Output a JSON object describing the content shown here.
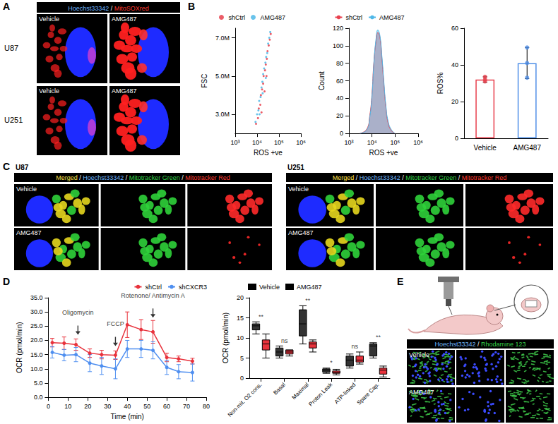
{
  "panel_labels": [
    "A",
    "B",
    "C",
    "D",
    "E"
  ],
  "image_panels": {
    "A": {
      "header": "Hoechst33342 / MitoSOXred",
      "rows": [
        "U87",
        "U251"
      ],
      "columns": [
        "Vehicle",
        "AMG487"
      ]
    },
    "C": {
      "groups": [
        "U87",
        "U251"
      ],
      "header": "Merged / Hoechst33342 / Mitotracker Green / Mitotracker Red",
      "rows": [
        "Vehicle",
        "AMG487"
      ]
    },
    "E": {
      "header": "Hoechst33342 / Rhodamine 123",
      "rows": [
        "Vehicle",
        "AMG487"
      ]
    }
  },
  "chart_data": [
    {
      "type": "scatter",
      "xlabel": "ROS +ve",
      "ylabel": "FSC",
      "log": "x",
      "xlim": [
        1000,
        1000000
      ],
      "xticks": [
        {
          "value": 1000,
          "label": "10³"
        },
        {
          "value": 10000,
          "label": "10⁴"
        },
        {
          "value": 100000,
          "label": "10⁵"
        },
        {
          "value": 1000000,
          "label": "10⁶"
        }
      ],
      "ylim": [
        2000000,
        7500000
      ],
      "yticks": [
        {
          "value": 3000000,
          "label": "3.0M"
        },
        {
          "value": 5000000,
          "label": "5.0M"
        },
        {
          "value": 7000000,
          "label": "7.0M"
        }
      ],
      "grid": false,
      "legend": "top",
      "marker": "circle",
      "series": [
        {
          "name": "shCtrl",
          "color": "#e8414e",
          "x": [
            9000,
            11000,
            12000,
            14000,
            15000,
            17000,
            19000,
            20000,
            23000,
            25000,
            28000,
            30000,
            34000,
            38000,
            42000,
            16000,
            22000,
            27000
          ],
          "values": [
            2500000,
            2800000,
            3300000,
            3500000,
            4000000,
            4300000,
            4600000,
            5000000,
            5300000,
            5600000,
            5900000,
            6300000,
            6600000,
            6900000,
            7200000,
            3100000,
            4200000,
            5000000
          ]
        },
        {
          "name": "AMG487",
          "color": "#4fb8e8",
          "x": [
            8500,
            10000,
            11500,
            12500,
            14500,
            16000,
            17500,
            19000,
            21000,
            24000,
            26000,
            29000,
            32000,
            36000,
            40000,
            13000,
            18000,
            25000
          ],
          "values": [
            2600000,
            3000000,
            3200000,
            3700000,
            3900000,
            4400000,
            4700000,
            5100000,
            5400000,
            5700000,
            6000000,
            6200000,
            6700000,
            7000000,
            7300000,
            3000000,
            4100000,
            4900000
          ]
        }
      ]
    },
    {
      "type": "area",
      "xlabel": "ROS +ve",
      "ylabel": "Count",
      "log": "x",
      "xlim": [
        1000,
        1000000
      ],
      "xticks": [
        {
          "value": 1000,
          "label": "10³"
        },
        {
          "value": 10000,
          "label": "10⁴"
        },
        {
          "value": 100000,
          "label": "10⁵"
        },
        {
          "value": 1000000,
          "label": "10⁶"
        }
      ],
      "ylim": [
        0,
        120
      ],
      "yticks": [
        0,
        20,
        40,
        60,
        80,
        100,
        120
      ],
      "grid": false,
      "legend": "top",
      "series": [
        {
          "name": "shCtrl",
          "color": "#e8414e",
          "x": [
            3000,
            6000,
            8000,
            10000,
            12000,
            15000,
            18000,
            22000,
            27000,
            33000,
            40000,
            50000,
            70000,
            100000
          ],
          "values": [
            0,
            5,
            20,
            45,
            80,
            105,
            115,
            110,
            85,
            55,
            30,
            12,
            3,
            0
          ]
        },
        {
          "name": "AMG487",
          "color": "#4fb8e8",
          "x": [
            3000,
            6000,
            8000,
            10000,
            12000,
            15000,
            18000,
            22000,
            27000,
            33000,
            40000,
            50000,
            70000,
            100000
          ],
          "values": [
            0,
            4,
            18,
            42,
            78,
            108,
            118,
            112,
            88,
            58,
            32,
            14,
            4,
            0
          ]
        }
      ]
    },
    {
      "type": "bar",
      "categories": [
        "Vehicle",
        "AMG487"
      ],
      "values": [
        32,
        41
      ],
      "errors": [
        1.5,
        8.5
      ],
      "points": [
        [
          31,
          32,
          33.5
        ],
        [
          33,
          41,
          49.5
        ]
      ],
      "colors": [
        "#e8414e",
        "#4f8fe8"
      ],
      "ylabel": "ROS%",
      "ylim": [
        0,
        60
      ],
      "yticks": [
        0,
        20,
        40,
        60
      ],
      "grid": false
    },
    {
      "type": "line",
      "xlabel": "Time (min)",
      "ylabel": "OCR (pmol/min)",
      "xlim": [
        0,
        80
      ],
      "xticks": [
        0,
        10,
        20,
        30,
        40,
        50,
        60,
        70,
        80
      ],
      "ylim": [
        0,
        35
      ],
      "yticks": [
        {
          "value": 0,
          "label": "0.0"
        },
        {
          "value": 5,
          "label": "5.0"
        },
        {
          "value": 10,
          "label": "10.0"
        },
        {
          "value": 15,
          "label": "15.0"
        },
        {
          "value": 20,
          "label": "20.0"
        },
        {
          "value": 25,
          "label": "25.0"
        },
        {
          "value": 30,
          "label": "30.0"
        },
        {
          "value": 35,
          "label": "35.0"
        }
      ],
      "grid": false,
      "legend": "top-right",
      "marker": "circle",
      "x": [
        2,
        8,
        14,
        21,
        27,
        34,
        40,
        47,
        53,
        60,
        66,
        73
      ],
      "series": [
        {
          "name": "shCtrl",
          "color": "#e8323c",
          "values": [
            19.2,
            19,
            18.5,
            15.5,
            15,
            14.8,
            25.5,
            23.8,
            23,
            14,
            13.5,
            12.7
          ],
          "errors": [
            1.5,
            2.2,
            2,
            1.5,
            1.5,
            1.5,
            4.5,
            3.5,
            4,
            1.5,
            1,
            1
          ]
        },
        {
          "name": "shCXCR3",
          "color": "#4f8ff0",
          "values": [
            15.8,
            14.8,
            15,
            12,
            11,
            10,
            17,
            17,
            16.5,
            10.5,
            9,
            8.7
          ],
          "errors": [
            2,
            2,
            2.5,
            3,
            3,
            3.5,
            3,
            3,
            3,
            2.5,
            2.5,
            3
          ]
        }
      ],
      "annotations": [
        {
          "text": "Oligomycin",
          "x": 15,
          "y": 22
        },
        {
          "text": "FCCP",
          "x": 34,
          "y": 18
        },
        {
          "text": "Rotenone/ Antimycin A",
          "x": 53,
          "y": 28
        }
      ]
    },
    {
      "type": "boxplot",
      "categories": [
        "Non-mit. O2 cons.",
        "Basal",
        "Maximal",
        "Proton Leak",
        "ATP-linked",
        "Spare Cap."
      ],
      "ylabel": "OCR (pmol/min)",
      "ylim": [
        0,
        20
      ],
      "yticks": [
        0,
        5,
        10,
        15,
        20
      ],
      "grid": false,
      "legend": "top-left",
      "series": [
        {
          "name": "Vehicle",
          "color": "#333333",
          "values": [
            [
              11,
              12,
              13,
              13.5,
              14
            ],
            [
              5,
              5.5,
              6.5,
              7.5,
              8
            ],
            [
              8.5,
              10.5,
              13.5,
              17,
              18
            ],
            [
              1.2,
              1.5,
              2,
              2.3,
              2.5
            ],
            [
              2.5,
              3,
              4.5,
              5.5,
              6
            ],
            [
              5,
              5.5,
              8,
              8.5,
              8.8
            ]
          ]
        },
        {
          "name": "AMG487",
          "color": "#e8323c",
          "values": [
            [
              5,
              7,
              8.5,
              9.5,
              11
            ],
            [
              5.5,
              6,
              6.5,
              7,
              7
            ],
            [
              6.5,
              7.5,
              8.5,
              9,
              9.5
            ],
            [
              0.8,
              1.2,
              1.5,
              1.8,
              2.2
            ],
            [
              3.5,
              4,
              4.5,
              5.5,
              6.5
            ],
            [
              0.3,
              1,
              2,
              2.5,
              3
            ]
          ]
        }
      ],
      "significance": [
        "**",
        "ns",
        "**",
        "*",
        "ns",
        "**"
      ]
    }
  ]
}
